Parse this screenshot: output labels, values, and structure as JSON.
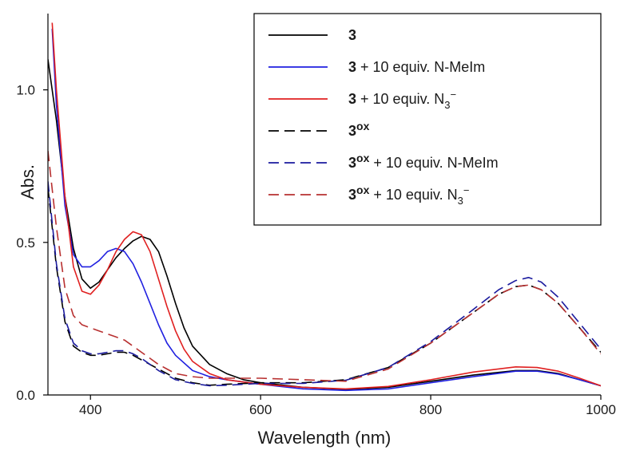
{
  "chart_data": {
    "type": "line",
    "xlabel": "Wavelength (nm)",
    "ylabel": "Abs.",
    "xlim": [
      350,
      1000
    ],
    "ylim": [
      0,
      1.25
    ],
    "x_ticks": [
      "400",
      "600",
      "800",
      "1000"
    ],
    "y_ticks": [
      "0.0",
      "0.5",
      "1.0"
    ],
    "x_tick_values": [
      400,
      600,
      800,
      1000
    ],
    "y_tick_values": [
      0.0,
      0.5,
      1.0
    ],
    "legend_position": "top-right",
    "grid": false,
    "series": [
      {
        "name": "3",
        "legend": {
          "compound": "3",
          "superscript": "",
          "suffix": "",
          "anion_sub": "",
          "anion_sup": ""
        },
        "color": "#000000",
        "dash": "solid",
        "points": [
          [
            350,
            1.1
          ],
          [
            360,
            0.9
          ],
          [
            370,
            0.65
          ],
          [
            380,
            0.48
          ],
          [
            390,
            0.38
          ],
          [
            400,
            0.35
          ],
          [
            410,
            0.37
          ],
          [
            420,
            0.41
          ],
          [
            430,
            0.45
          ],
          [
            440,
            0.48
          ],
          [
            450,
            0.505
          ],
          [
            460,
            0.52
          ],
          [
            470,
            0.51
          ],
          [
            480,
            0.47
          ],
          [
            490,
            0.39
          ],
          [
            500,
            0.3
          ],
          [
            510,
            0.22
          ],
          [
            520,
            0.16
          ],
          [
            540,
            0.1
          ],
          [
            560,
            0.07
          ],
          [
            580,
            0.05
          ],
          [
            600,
            0.04
          ],
          [
            650,
            0.025
          ],
          [
            700,
            0.018
          ],
          [
            750,
            0.025
          ],
          [
            800,
            0.045
          ],
          [
            850,
            0.065
          ],
          [
            900,
            0.08
          ],
          [
            925,
            0.08
          ],
          [
            950,
            0.07
          ],
          [
            975,
            0.05
          ],
          [
            1000,
            0.03
          ]
        ]
      },
      {
        "name": "3 + 10 equiv. N-MeIm",
        "legend": {
          "compound": "3",
          "superscript": "",
          "suffix": " + 10 equiv. N-MeIm",
          "anion_sub": "",
          "anion_sup": ""
        },
        "color": "#2020e0",
        "dash": "solid",
        "points": [
          [
            355,
            1.2
          ],
          [
            360,
            0.95
          ],
          [
            370,
            0.62
          ],
          [
            380,
            0.46
          ],
          [
            390,
            0.42
          ],
          [
            400,
            0.42
          ],
          [
            410,
            0.44
          ],
          [
            420,
            0.47
          ],
          [
            430,
            0.48
          ],
          [
            440,
            0.47
          ],
          [
            450,
            0.43
          ],
          [
            460,
            0.37
          ],
          [
            470,
            0.3
          ],
          [
            480,
            0.23
          ],
          [
            490,
            0.17
          ],
          [
            500,
            0.13
          ],
          [
            520,
            0.08
          ],
          [
            540,
            0.06
          ],
          [
            560,
            0.05
          ],
          [
            600,
            0.035
          ],
          [
            650,
            0.02
          ],
          [
            700,
            0.015
          ],
          [
            750,
            0.02
          ],
          [
            800,
            0.04
          ],
          [
            850,
            0.06
          ],
          [
            900,
            0.078
          ],
          [
            925,
            0.078
          ],
          [
            950,
            0.068
          ],
          [
            975,
            0.05
          ],
          [
            1000,
            0.03
          ]
        ]
      },
      {
        "name": "3 + 10 equiv. N3−",
        "legend": {
          "compound": "3",
          "superscript": "",
          "suffix": " + 10 equiv. N",
          "anion_sub": "3",
          "anion_sup": "−"
        },
        "color": "#e02020",
        "dash": "solid",
        "points": [
          [
            355,
            1.22
          ],
          [
            360,
            1.0
          ],
          [
            370,
            0.65
          ],
          [
            380,
            0.42
          ],
          [
            390,
            0.34
          ],
          [
            400,
            0.33
          ],
          [
            410,
            0.36
          ],
          [
            420,
            0.41
          ],
          [
            430,
            0.47
          ],
          [
            440,
            0.51
          ],
          [
            450,
            0.535
          ],
          [
            460,
            0.525
          ],
          [
            470,
            0.47
          ],
          [
            480,
            0.38
          ],
          [
            490,
            0.29
          ],
          [
            500,
            0.21
          ],
          [
            510,
            0.15
          ],
          [
            520,
            0.11
          ],
          [
            540,
            0.07
          ],
          [
            560,
            0.05
          ],
          [
            600,
            0.035
          ],
          [
            650,
            0.025
          ],
          [
            700,
            0.02
          ],
          [
            750,
            0.028
          ],
          [
            800,
            0.05
          ],
          [
            850,
            0.075
          ],
          [
            900,
            0.092
          ],
          [
            925,
            0.09
          ],
          [
            950,
            0.078
          ],
          [
            975,
            0.055
          ],
          [
            1000,
            0.03
          ]
        ]
      },
      {
        "name": "3ox",
        "legend": {
          "compound": "3",
          "superscript": "ox",
          "suffix": "",
          "anion_sub": "",
          "anion_sup": ""
        },
        "color": "#000000",
        "dash": "dashed",
        "points": [
          [
            350,
            0.68
          ],
          [
            360,
            0.42
          ],
          [
            370,
            0.24
          ],
          [
            380,
            0.16
          ],
          [
            390,
            0.14
          ],
          [
            400,
            0.13
          ],
          [
            410,
            0.13
          ],
          [
            420,
            0.135
          ],
          [
            430,
            0.14
          ],
          [
            440,
            0.14
          ],
          [
            450,
            0.13
          ],
          [
            460,
            0.115
          ],
          [
            470,
            0.1
          ],
          [
            480,
            0.085
          ],
          [
            490,
            0.07
          ],
          [
            500,
            0.055
          ],
          [
            520,
            0.04
          ],
          [
            540,
            0.032
          ],
          [
            560,
            0.035
          ],
          [
            600,
            0.04
          ],
          [
            650,
            0.04
          ],
          [
            700,
            0.05
          ],
          [
            750,
            0.09
          ],
          [
            800,
            0.17
          ],
          [
            850,
            0.27
          ],
          [
            880,
            0.33
          ],
          [
            900,
            0.355
          ],
          [
            915,
            0.36
          ],
          [
            930,
            0.345
          ],
          [
            950,
            0.3
          ],
          [
            975,
            0.22
          ],
          [
            1000,
            0.14
          ]
        ]
      },
      {
        "name": "3ox + 10 equiv. N-MeIm",
        "legend": {
          "compound": "3",
          "superscript": "ox",
          "suffix": " + 10 equiv. N-MeIm",
          "anion_sub": "",
          "anion_sup": ""
        },
        "color": "#1a1a9e",
        "dash": "dashed",
        "points": [
          [
            350,
            0.7
          ],
          [
            360,
            0.43
          ],
          [
            370,
            0.25
          ],
          [
            380,
            0.17
          ],
          [
            390,
            0.145
          ],
          [
            400,
            0.135
          ],
          [
            410,
            0.135
          ],
          [
            420,
            0.14
          ],
          [
            430,
            0.145
          ],
          [
            440,
            0.145
          ],
          [
            450,
            0.135
          ],
          [
            460,
            0.12
          ],
          [
            470,
            0.1
          ],
          [
            480,
            0.08
          ],
          [
            490,
            0.065
          ],
          [
            500,
            0.05
          ],
          [
            520,
            0.038
          ],
          [
            540,
            0.03
          ],
          [
            560,
            0.032
          ],
          [
            600,
            0.038
          ],
          [
            650,
            0.038
          ],
          [
            700,
            0.048
          ],
          [
            750,
            0.09
          ],
          [
            800,
            0.175
          ],
          [
            850,
            0.28
          ],
          [
            880,
            0.345
          ],
          [
            900,
            0.375
          ],
          [
            915,
            0.385
          ],
          [
            930,
            0.37
          ],
          [
            950,
            0.32
          ],
          [
            975,
            0.235
          ],
          [
            1000,
            0.15
          ]
        ]
      },
      {
        "name": "3ox + 10 equiv. N3−",
        "legend": {
          "compound": "3",
          "superscript": "ox",
          "suffix": " + 10 equiv. N",
          "anion_sub": "3",
          "anion_sup": "−"
        },
        "color": "#b83030",
        "dash": "dashed",
        "points": [
          [
            350,
            0.8
          ],
          [
            360,
            0.55
          ],
          [
            370,
            0.35
          ],
          [
            380,
            0.26
          ],
          [
            390,
            0.23
          ],
          [
            400,
            0.22
          ],
          [
            410,
            0.21
          ],
          [
            420,
            0.2
          ],
          [
            430,
            0.19
          ],
          [
            440,
            0.18
          ],
          [
            450,
            0.16
          ],
          [
            460,
            0.14
          ],
          [
            470,
            0.12
          ],
          [
            480,
            0.1
          ],
          [
            490,
            0.085
          ],
          [
            500,
            0.07
          ],
          [
            520,
            0.06
          ],
          [
            540,
            0.055
          ],
          [
            560,
            0.055
          ],
          [
            600,
            0.055
          ],
          [
            650,
            0.05
          ],
          [
            700,
            0.045
          ],
          [
            750,
            0.085
          ],
          [
            800,
            0.17
          ],
          [
            850,
            0.27
          ],
          [
            880,
            0.33
          ],
          [
            900,
            0.355
          ],
          [
            915,
            0.36
          ],
          [
            930,
            0.345
          ],
          [
            950,
            0.3
          ],
          [
            975,
            0.22
          ],
          [
            1000,
            0.135
          ]
        ]
      }
    ]
  }
}
